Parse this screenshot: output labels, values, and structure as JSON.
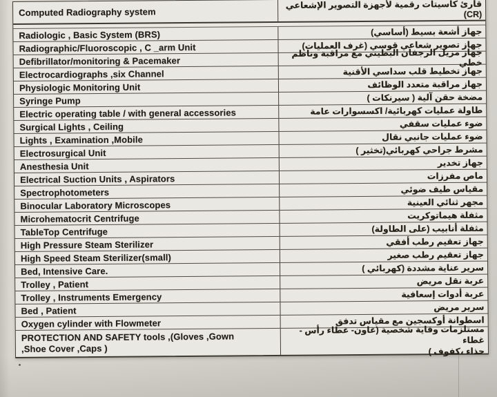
{
  "colors": {
    "paper": "#eae8e2",
    "background": "#d6d3cd",
    "table_line": "#3d3a34",
    "ink": "#221f1a"
  },
  "table": {
    "columns": [
      {
        "id": "english-name",
        "lang": "en"
      },
      {
        "id": "arabic-name",
        "lang": "ar"
      }
    ],
    "rows": [
      {
        "english": "Computed Radiography system",
        "arabic": "قارئ كاسيتات رقمية لأجهزة التصوير الإشعاعي (CR)"
      },
      {
        "english": "Radiologic , Basic System (BRS)",
        "arabic": "جهاز أشعة بسيط (أساسي)"
      },
      {
        "english": "Radiographic/Fluoroscopic , C _arm Unit",
        "arabic": "جهاز تصوير شعاعي قوسي (غرف العمليات)"
      },
      {
        "english": "Defibrillator/monitoring & Pacemaker",
        "arabic": "جهاز مزيل الرجفان البطيني مع مراقبة وناظم خطي"
      },
      {
        "english": "Electrocardiographs ,six Channel",
        "arabic": "جهاز تخطيط قلب سداسي الأقنية"
      },
      {
        "english": "Physiologic Monitoring Unit",
        "arabic": "جهاز مراقبة متعدد الوظائف"
      },
      {
        "english": "Syringe Pump",
        "arabic": "مضخة حقن آلية ( سيرنكات )"
      },
      {
        "english": "Electric operating table / with general accessories",
        "arabic": "طاولة عمليات كهربائية/ اكسسوارات عامة"
      },
      {
        "english": "Surgical Lights , Ceiling",
        "arabic": "ضوء عمليات سقفي"
      },
      {
        "english": "Lights , Examination ,Mobile",
        "arabic": "ضوء عمليات جانبي نقال"
      },
      {
        "english": "Electrosurgical Unit",
        "arabic": "مشرط جراحي كهربائي(تخثير )"
      },
      {
        "english": "Anesthesia Unit",
        "arabic": "جهاز تخدير"
      },
      {
        "english": "Electrical Suction Units , Aspirators",
        "arabic": "ماص مفرزات"
      },
      {
        "english": "Spectrophotometers",
        "arabic": "مقياس طيف ضوئي"
      },
      {
        "english": "Binocular Laboratory Microscopes",
        "arabic": "مجهر ثنائي العينية"
      },
      {
        "english": "Microhematocrit  Centrifuge",
        "arabic": "مثفلة هيماتوكريت"
      },
      {
        "english": "TableTop Centrifuge",
        "arabic": "مثفلة أنابيب (على الطاولة)"
      },
      {
        "english": "High Pressure Steam Sterilizer",
        "arabic": "جهاز تعقيم رطب أفقي"
      },
      {
        "english": "High Speed Steam Sterilizer(small)",
        "arabic": "جهاز تعقيم رطب صغير"
      },
      {
        "english": "Bed, Intensive Care.",
        "arabic": "سرير عناية مشددة (كهربائي )"
      },
      {
        "english": "Trolley , Patient",
        "arabic": "عربة نقل مريض"
      },
      {
        "english": "Trolley , Instruments Emergency",
        "arabic": "عربة أدوات إسعافية"
      },
      {
        "english": "Bed , Patient",
        "arabic": "سرير مريض"
      },
      {
        "english": "Oxygen cylinder with Flowmeter",
        "arabic": "اسطوانة أوكسجين مع مقياس تدفق"
      },
      {
        "english": "PROTECTION AND SAFETY tools ,(Gloves ,Gown\n,Shoe Cover ,Caps )",
        "arabic": "مستلزمات وقاية شخصية (غاون- غطاء رأس - غطاء\nحذاء ،كفوف )"
      }
    ]
  }
}
